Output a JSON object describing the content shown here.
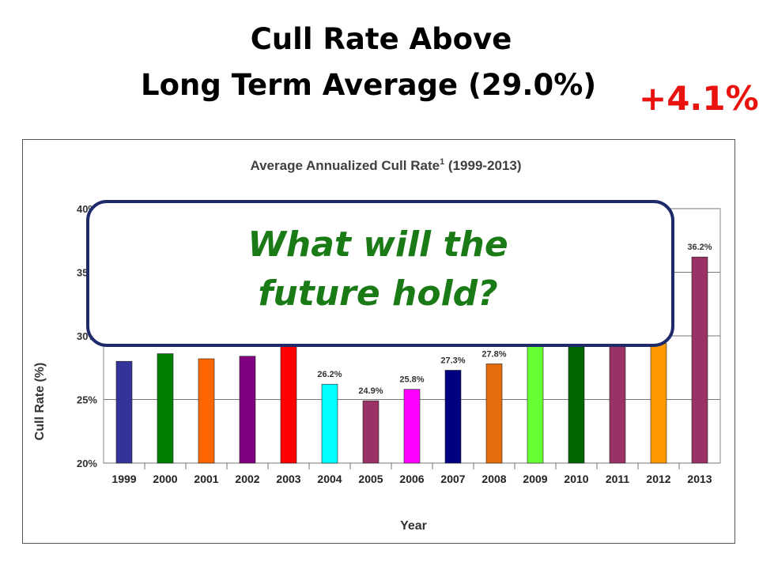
{
  "slide": {
    "title_line1": "Cull Rate Above",
    "title_line2": "Long Term Average  (29.0%)",
    "delta": "+4.1%",
    "callout_line1": "What will the",
    "callout_line2": "future hold?"
  },
  "chart_data": {
    "type": "bar",
    "title": "Average Annualized  Cull Rate",
    "title_superscript": "1",
    "title_suffix": " (1999-2013)",
    "xlabel": "Year",
    "ylabel": "Cull Rate (%)",
    "ylim": [
      20,
      40
    ],
    "yticks": [
      20,
      25,
      30,
      35,
      40
    ],
    "ytick_labels": [
      "20%",
      "25%",
      "30%",
      "35%",
      "40%"
    ],
    "categories": [
      "1999",
      "2000",
      "2001",
      "2002",
      "2003",
      "2004",
      "2005",
      "2006",
      "2007",
      "2008",
      "2009",
      "2010",
      "2011",
      "2012",
      "2013"
    ],
    "values": [
      28.0,
      28.6,
      28.2,
      28.4,
      29.2,
      26.2,
      24.9,
      25.8,
      27.3,
      27.8,
      29.4,
      29.4,
      29.4,
      29.4,
      36.2
    ],
    "data_labels": [
      "",
      "",
      "",
      "",
      "",
      "26.2%",
      "24.9%",
      "25.8%",
      "27.3%",
      "27.8%",
      "",
      "",
      "",
      "",
      "36.2%"
    ],
    "colors": [
      "#333399",
      "#008000",
      "#ff6600",
      "#800080",
      "#ff0000",
      "#00ffff",
      "#993366",
      "#ff00ff",
      "#000080",
      "#e46c0a",
      "#66ff33",
      "#006600",
      "#993366",
      "#ff9900",
      "#993366"
    ],
    "grid": true,
    "legend": "none"
  }
}
